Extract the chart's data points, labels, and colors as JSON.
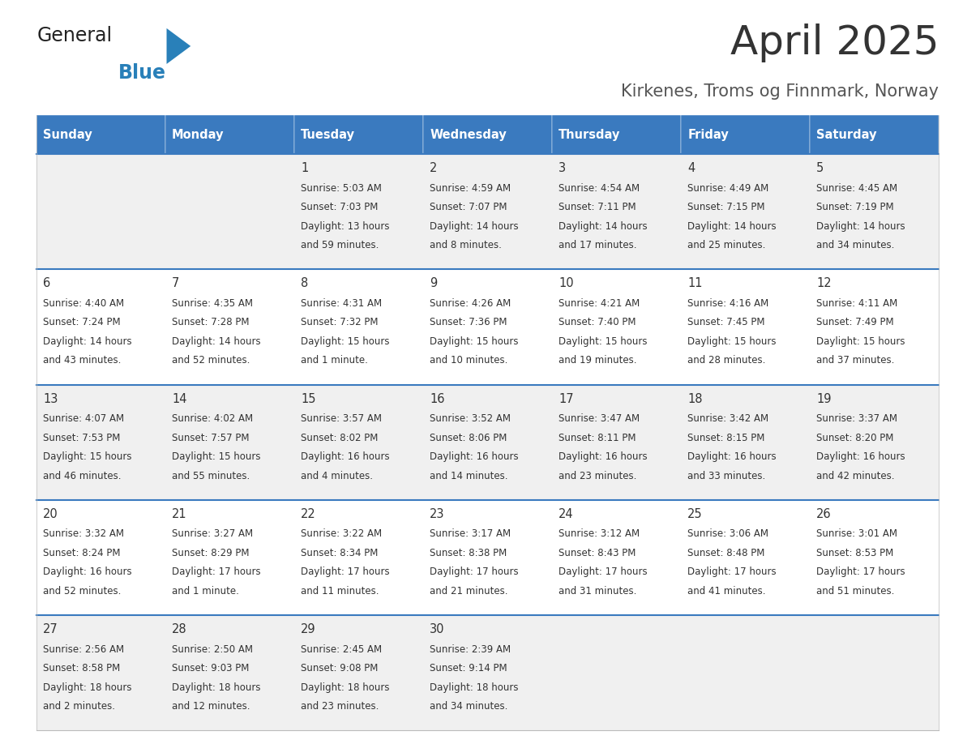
{
  "title": "April 2025",
  "subtitle": "Kirkenes, Troms og Finnmark, Norway",
  "days_of_week": [
    "Sunday",
    "Monday",
    "Tuesday",
    "Wednesday",
    "Thursday",
    "Friday",
    "Saturday"
  ],
  "header_bg": "#3a7abf",
  "header_text": "#ffffff",
  "row_bg_odd": "#f0f0f0",
  "row_bg_even": "#ffffff",
  "cell_text": "#333333",
  "separator_color": "#3a7abf",
  "title_color": "#333333",
  "subtitle_color": "#555555",
  "logo_general_color": "#222222",
  "logo_blue_color": "#2980b9",
  "weeks": [
    [
      {
        "day": null,
        "text": ""
      },
      {
        "day": null,
        "text": ""
      },
      {
        "day": 1,
        "lines": [
          "Sunrise: 5:03 AM",
          "Sunset: 7:03 PM",
          "Daylight: 13 hours",
          "and 59 minutes."
        ]
      },
      {
        "day": 2,
        "lines": [
          "Sunrise: 4:59 AM",
          "Sunset: 7:07 PM",
          "Daylight: 14 hours",
          "and 8 minutes."
        ]
      },
      {
        "day": 3,
        "lines": [
          "Sunrise: 4:54 AM",
          "Sunset: 7:11 PM",
          "Daylight: 14 hours",
          "and 17 minutes."
        ]
      },
      {
        "day": 4,
        "lines": [
          "Sunrise: 4:49 AM",
          "Sunset: 7:15 PM",
          "Daylight: 14 hours",
          "and 25 minutes."
        ]
      },
      {
        "day": 5,
        "lines": [
          "Sunrise: 4:45 AM",
          "Sunset: 7:19 PM",
          "Daylight: 14 hours",
          "and 34 minutes."
        ]
      }
    ],
    [
      {
        "day": 6,
        "lines": [
          "Sunrise: 4:40 AM",
          "Sunset: 7:24 PM",
          "Daylight: 14 hours",
          "and 43 minutes."
        ]
      },
      {
        "day": 7,
        "lines": [
          "Sunrise: 4:35 AM",
          "Sunset: 7:28 PM",
          "Daylight: 14 hours",
          "and 52 minutes."
        ]
      },
      {
        "day": 8,
        "lines": [
          "Sunrise: 4:31 AM",
          "Sunset: 7:32 PM",
          "Daylight: 15 hours",
          "and 1 minute."
        ]
      },
      {
        "day": 9,
        "lines": [
          "Sunrise: 4:26 AM",
          "Sunset: 7:36 PM",
          "Daylight: 15 hours",
          "and 10 minutes."
        ]
      },
      {
        "day": 10,
        "lines": [
          "Sunrise: 4:21 AM",
          "Sunset: 7:40 PM",
          "Daylight: 15 hours",
          "and 19 minutes."
        ]
      },
      {
        "day": 11,
        "lines": [
          "Sunrise: 4:16 AM",
          "Sunset: 7:45 PM",
          "Daylight: 15 hours",
          "and 28 minutes."
        ]
      },
      {
        "day": 12,
        "lines": [
          "Sunrise: 4:11 AM",
          "Sunset: 7:49 PM",
          "Daylight: 15 hours",
          "and 37 minutes."
        ]
      }
    ],
    [
      {
        "day": 13,
        "lines": [
          "Sunrise: 4:07 AM",
          "Sunset: 7:53 PM",
          "Daylight: 15 hours",
          "and 46 minutes."
        ]
      },
      {
        "day": 14,
        "lines": [
          "Sunrise: 4:02 AM",
          "Sunset: 7:57 PM",
          "Daylight: 15 hours",
          "and 55 minutes."
        ]
      },
      {
        "day": 15,
        "lines": [
          "Sunrise: 3:57 AM",
          "Sunset: 8:02 PM",
          "Daylight: 16 hours",
          "and 4 minutes."
        ]
      },
      {
        "day": 16,
        "lines": [
          "Sunrise: 3:52 AM",
          "Sunset: 8:06 PM",
          "Daylight: 16 hours",
          "and 14 minutes."
        ]
      },
      {
        "day": 17,
        "lines": [
          "Sunrise: 3:47 AM",
          "Sunset: 8:11 PM",
          "Daylight: 16 hours",
          "and 23 minutes."
        ]
      },
      {
        "day": 18,
        "lines": [
          "Sunrise: 3:42 AM",
          "Sunset: 8:15 PM",
          "Daylight: 16 hours",
          "and 33 minutes."
        ]
      },
      {
        "day": 19,
        "lines": [
          "Sunrise: 3:37 AM",
          "Sunset: 8:20 PM",
          "Daylight: 16 hours",
          "and 42 minutes."
        ]
      }
    ],
    [
      {
        "day": 20,
        "lines": [
          "Sunrise: 3:32 AM",
          "Sunset: 8:24 PM",
          "Daylight: 16 hours",
          "and 52 minutes."
        ]
      },
      {
        "day": 21,
        "lines": [
          "Sunrise: 3:27 AM",
          "Sunset: 8:29 PM",
          "Daylight: 17 hours",
          "and 1 minute."
        ]
      },
      {
        "day": 22,
        "lines": [
          "Sunrise: 3:22 AM",
          "Sunset: 8:34 PM",
          "Daylight: 17 hours",
          "and 11 minutes."
        ]
      },
      {
        "day": 23,
        "lines": [
          "Sunrise: 3:17 AM",
          "Sunset: 8:38 PM",
          "Daylight: 17 hours",
          "and 21 minutes."
        ]
      },
      {
        "day": 24,
        "lines": [
          "Sunrise: 3:12 AM",
          "Sunset: 8:43 PM",
          "Daylight: 17 hours",
          "and 31 minutes."
        ]
      },
      {
        "day": 25,
        "lines": [
          "Sunrise: 3:06 AM",
          "Sunset: 8:48 PM",
          "Daylight: 17 hours",
          "and 41 minutes."
        ]
      },
      {
        "day": 26,
        "lines": [
          "Sunrise: 3:01 AM",
          "Sunset: 8:53 PM",
          "Daylight: 17 hours",
          "and 51 minutes."
        ]
      }
    ],
    [
      {
        "day": 27,
        "lines": [
          "Sunrise: 2:56 AM",
          "Sunset: 8:58 PM",
          "Daylight: 18 hours",
          "and 2 minutes."
        ]
      },
      {
        "day": 28,
        "lines": [
          "Sunrise: 2:50 AM",
          "Sunset: 9:03 PM",
          "Daylight: 18 hours",
          "and 12 minutes."
        ]
      },
      {
        "day": 29,
        "lines": [
          "Sunrise: 2:45 AM",
          "Sunset: 9:08 PM",
          "Daylight: 18 hours",
          "and 23 minutes."
        ]
      },
      {
        "day": 30,
        "lines": [
          "Sunrise: 2:39 AM",
          "Sunset: 9:14 PM",
          "Daylight: 18 hours",
          "and 34 minutes."
        ]
      },
      {
        "day": null,
        "lines": []
      },
      {
        "day": null,
        "lines": []
      },
      {
        "day": null,
        "lines": []
      }
    ]
  ]
}
